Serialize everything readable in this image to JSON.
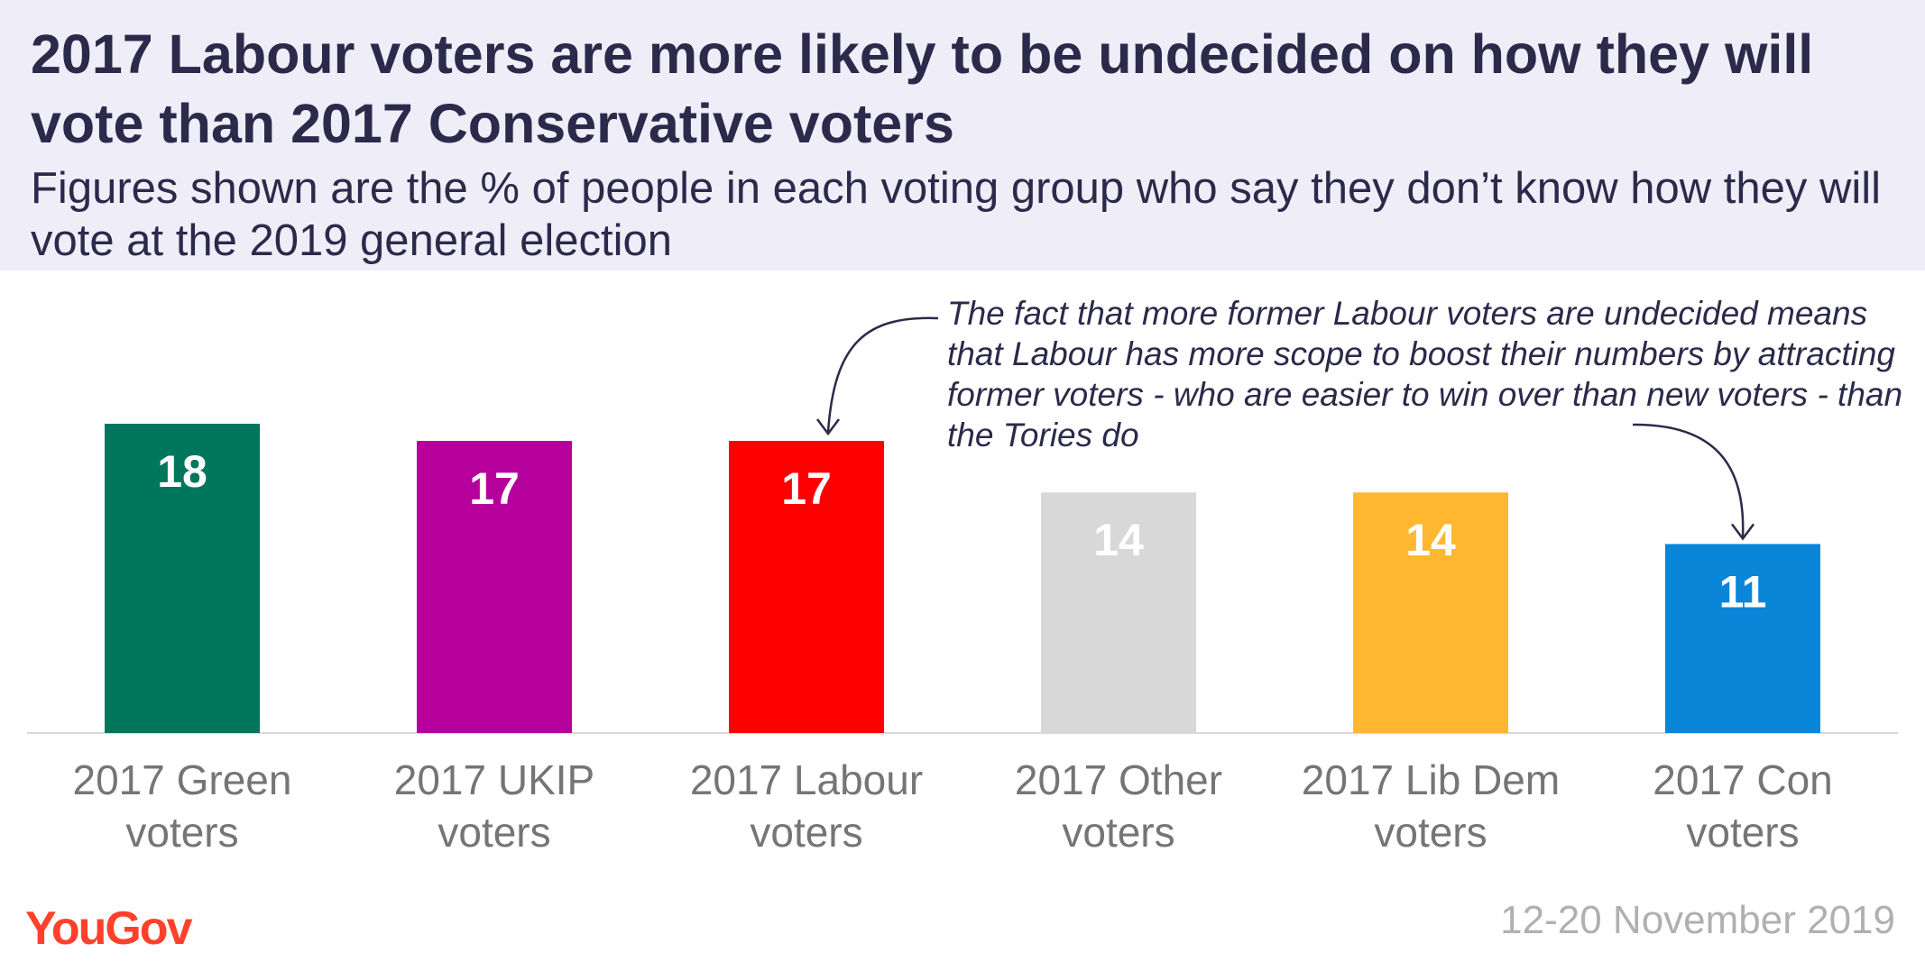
{
  "header": {
    "title": "2017 Labour voters are more likely to be undecided on how they will vote than 2017 Conservative voters",
    "subtitle": "Figures shown are the % of people in each voting group who say they don’t know how they will vote at the 2019 general election"
  },
  "annotation": "The fact that more former Labour voters are undecided means that Labour has more scope to boost their numbers by attracting former voters - who are easier to win over than new voters - than the Tories do",
  "footer": {
    "brand": "YouGov",
    "date": "12-20 November 2019"
  },
  "colors": {
    "bar_label": "#ffffff",
    "axis_label": "#757575",
    "baseline": "#d9d9d9",
    "brand": "#ff412c"
  },
  "chart_data": {
    "type": "bar",
    "title": "2017 Labour voters are more likely to be undecided on how they will vote than 2017 Conservative voters",
    "xlabel": "",
    "ylabel": "",
    "ylim": [
      0,
      18
    ],
    "grid": false,
    "legend": "none",
    "categories": [
      [
        "2017 Green",
        "voters"
      ],
      [
        "2017 UKIP",
        "voters"
      ],
      [
        "2017 Labour",
        "voters"
      ],
      [
        "2017 Other",
        "voters"
      ],
      [
        "2017 Lib Dem",
        "voters"
      ],
      [
        "2017 Con",
        "voters"
      ]
    ],
    "values": [
      18,
      17,
      17,
      14,
      14,
      11
    ],
    "bar_colors": [
      "#00765d",
      "#b5009c",
      "#ff0000",
      "#d8d8d8",
      "#ffb732",
      "#0a86d9"
    ]
  }
}
